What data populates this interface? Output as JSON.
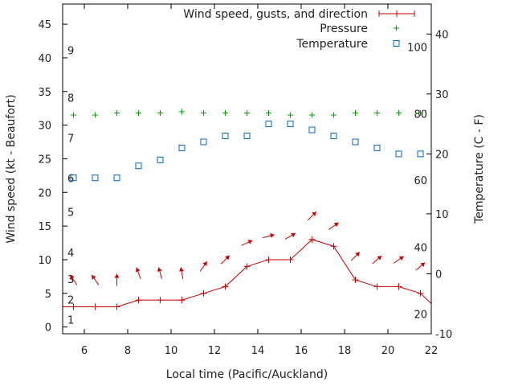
{
  "chart_data": {
    "type": "line",
    "xlabel": "Local time (Pacific/Auckland)",
    "ylabel_left": "Wind speed (kt - Beaufort)",
    "ylabel_right": "Temperature (C - F)",
    "xlim": [
      5,
      22
    ],
    "ylim_left": [
      -1,
      48
    ],
    "ylim_right": [
      -10,
      45
    ],
    "x_ticks": [
      6,
      8,
      10,
      12,
      14,
      16,
      18,
      20,
      22
    ],
    "y_left_ticks": [
      0,
      5,
      10,
      15,
      20,
      25,
      30,
      35,
      40,
      45
    ],
    "y_right_ticks": [
      -10,
      0,
      10,
      20,
      30,
      40
    ],
    "beaufort_labels": [
      {
        "label": "1",
        "y": 1.1
      },
      {
        "label": "2",
        "y": 4.1
      },
      {
        "label": "3",
        "y": 7.1
      },
      {
        "label": "4",
        "y": 11.1
      },
      {
        "label": "5",
        "y": 17.1
      },
      {
        "label": "6",
        "y": 22.1
      },
      {
        "label": "7",
        "y": 28.1
      },
      {
        "label": "8",
        "y": 34.1
      },
      {
        "label": "9",
        "y": 41.1
      }
    ],
    "fahrenheit_labels": [
      {
        "label": "20",
        "y": -6.7
      },
      {
        "label": "40",
        "y": 4.4
      },
      {
        "label": "60",
        "y": 15.6
      },
      {
        "label": "80",
        "y": 26.7
      },
      {
        "label": "100",
        "y": 37.8
      }
    ],
    "legend": [
      {
        "key": "wind",
        "label": "Wind speed, gusts, and direction"
      },
      {
        "key": "pressure",
        "label": "Pressure"
      },
      {
        "key": "temperature",
        "label": "Temperature"
      }
    ],
    "series": {
      "wind": {
        "color": "#cc0000",
        "x": [
          5,
          5.5,
          6.5,
          7.5,
          8.5,
          9.5,
          10.5,
          11.5,
          12.5,
          13.5,
          14.5,
          15.5,
          16.5,
          17.5,
          18.5,
          19.5,
          20.5,
          21.5,
          22
        ],
        "y": [
          3,
          3,
          3,
          3,
          4,
          4,
          4,
          5,
          6,
          9,
          10,
          10,
          13,
          12,
          7,
          6,
          6,
          5,
          3.5
        ],
        "markers_x": [
          5.5,
          6.5,
          7.5,
          8.5,
          9.5,
          10.5,
          11.5,
          12.5,
          13.5,
          14.5,
          15.5,
          16.5,
          17.5,
          18.5,
          19.5,
          20.5,
          21.5
        ]
      },
      "direction": {
        "color": "#cc0000",
        "x": [
          5.5,
          6.5,
          7.5,
          8.5,
          9.5,
          10.5,
          11.5,
          12.5,
          13.5,
          14.5,
          15.5,
          16.5,
          17.5,
          18.5,
          19.5,
          20.5,
          21.5
        ],
        "y": [
          7,
          7,
          7,
          8,
          8,
          8,
          9,
          10,
          12.5,
          13.5,
          13.5,
          16.5,
          15,
          10.5,
          10,
          10,
          9
        ],
        "angle_deg": [
          -35,
          -35,
          0,
          -20,
          -15,
          -10,
          35,
          45,
          65,
          75,
          60,
          45,
          55,
          45,
          50,
          55,
          50
        ]
      },
      "pressure": {
        "color": "#00a000",
        "x": [
          5.5,
          6.5,
          7.5,
          8.5,
          9.5,
          10.5,
          11.5,
          12.5,
          13.5,
          14.5,
          15.5,
          16.5,
          17.5,
          18.5,
          19.5,
          20.5,
          21.5
        ],
        "y": [
          31.5,
          31.5,
          31.8,
          31.8,
          31.8,
          32,
          31.8,
          31.8,
          31.8,
          31.8,
          31.5,
          31.5,
          31.5,
          31.8,
          31.8,
          31.8,
          31.8
        ]
      },
      "temperature": {
        "color": "#0066cc",
        "axis": "right",
        "x": [
          5.5,
          6.5,
          7.5,
          8.5,
          9.5,
          10.5,
          11.5,
          12.5,
          13.5,
          14.5,
          15.5,
          16.5,
          17.5,
          18.5,
          19.5,
          20.5,
          21.5
        ],
        "y": [
          16,
          16,
          16,
          18,
          19,
          21,
          22,
          23,
          23,
          25,
          25,
          24,
          23,
          22,
          21,
          20,
          20
        ]
      }
    }
  }
}
